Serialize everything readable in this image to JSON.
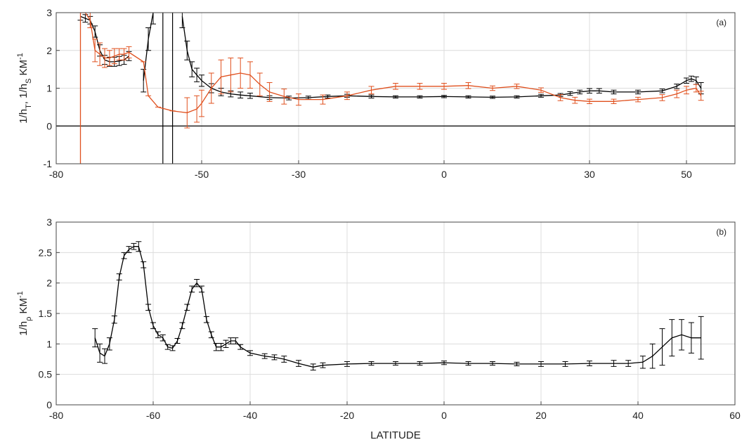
{
  "chart_data": [
    {
      "type": "line",
      "annotation": "(a)",
      "ylabel": [
        {
          "text": "1/h"
        },
        {
          "text": "T",
          "shift": "sub"
        },
        {
          "text": ", 1/h"
        },
        {
          "text": "S",
          "shift": "sub"
        },
        {
          "text": " KM"
        },
        {
          "text": "-1",
          "shift": "super"
        }
      ],
      "xlim": [
        -80,
        60
      ],
      "ylim": [
        -1,
        3
      ],
      "xticks": [
        -80,
        -50,
        -30,
        0,
        30,
        50
      ],
      "yticks": [
        -1,
        0,
        1,
        2,
        3
      ],
      "grid": true,
      "zeroline": true,
      "vlines": [
        -58,
        -56
      ],
      "vline_color": "#000000",
      "series": [
        {
          "name": "1/hT",
          "color": "#000000",
          "x": [
            -75,
            -74,
            -73,
            -72,
            -71,
            -70,
            -69,
            -68,
            -67,
            -66,
            -65,
            -63,
            -62,
            -61,
            -60,
            -58,
            -54,
            -53,
            -52,
            -51,
            -50,
            -48,
            -46,
            -44,
            -42,
            -40,
            -36,
            -32,
            -28,
            -24,
            -20,
            -15,
            -10,
            -5,
            0,
            5,
            10,
            15,
            20,
            24,
            26,
            28,
            30,
            32,
            35,
            40,
            45,
            48,
            50,
            51,
            52,
            53
          ],
          "values": [
            2.9,
            2.85,
            2.8,
            2.5,
            2.0,
            1.75,
            1.7,
            1.7,
            1.72,
            1.75,
            1.85,
            null,
            1.2,
            2.3,
            3.0,
            null,
            2.9,
            2.0,
            1.5,
            1.35,
            1.2,
            1.0,
            0.9,
            0.85,
            0.82,
            0.8,
            0.75,
            0.74,
            0.75,
            0.78,
            0.8,
            0.78,
            0.77,
            0.77,
            0.78,
            0.77,
            0.76,
            0.77,
            0.8,
            0.82,
            0.86,
            0.9,
            0.93,
            0.93,
            0.9,
            0.9,
            0.93,
            1.05,
            1.2,
            1.25,
            1.2,
            1.0
          ],
          "errors": [
            0.1,
            0.1,
            0.1,
            0.15,
            0.15,
            0.12,
            0.12,
            0.12,
            0.12,
            0.12,
            0.12,
            null,
            0.3,
            0.3,
            0.3,
            null,
            0.3,
            0.25,
            0.2,
            0.18,
            0.15,
            0.12,
            0.1,
            0.08,
            0.08,
            0.07,
            0.05,
            0.05,
            0.04,
            0.04,
            0.04,
            0.04,
            0.03,
            0.03,
            0.03,
            0.03,
            0.03,
            0.03,
            0.04,
            0.04,
            0.05,
            0.05,
            0.06,
            0.06,
            0.05,
            0.05,
            0.05,
            0.06,
            0.07,
            0.07,
            0.1,
            0.15
          ]
        },
        {
          "name": "1/hS",
          "color": "#e0501e",
          "x": [
            -75,
            -75,
            -74,
            -73,
            -72,
            -71,
            -70,
            -69,
            -68,
            -67,
            -66,
            -65,
            -62,
            -61,
            -59,
            -56,
            -53,
            -51,
            -50,
            -48,
            -46,
            -44,
            -42,
            -40,
            -38,
            -36,
            -33,
            -30,
            -25,
            -20,
            -15,
            -10,
            -5,
            0,
            5,
            10,
            15,
            20,
            24,
            27,
            30,
            35,
            40,
            45,
            48,
            50,
            52,
            53
          ],
          "values": [
            -1,
            3,
            3.0,
            2.8,
            2.0,
            1.9,
            1.8,
            1.8,
            1.85,
            1.9,
            1.9,
            1.95,
            1.7,
            0.8,
            0.5,
            0.4,
            0.35,
            0.45,
            0.6,
            1.0,
            1.3,
            1.35,
            1.4,
            1.35,
            1.1,
            0.9,
            0.78,
            0.7,
            0.7,
            0.8,
            0.95,
            1.05,
            1.05,
            1.05,
            1.07,
            1.0,
            1.05,
            0.95,
            0.75,
            0.68,
            0.65,
            0.65,
            0.7,
            0.75,
            0.85,
            0.95,
            1.0,
            0.8
          ],
          "errors": [
            0,
            0,
            0,
            0.2,
            0.3,
            0.3,
            0.25,
            0.2,
            0.2,
            0.15,
            0.15,
            0.15,
            0,
            0,
            0,
            0,
            0.4,
            0.35,
            0.35,
            0.4,
            0.45,
            0.45,
            0.4,
            0.35,
            0.3,
            0.25,
            0.2,
            0.15,
            0.12,
            0.1,
            0.1,
            0.08,
            0.08,
            0.08,
            0.08,
            0.06,
            0.06,
            0.06,
            0.08,
            0.08,
            0.06,
            0.06,
            0.06,
            0.08,
            0.1,
            0.1,
            0.1,
            0.12
          ]
        }
      ]
    },
    {
      "type": "line",
      "annotation": "(b)",
      "ylabel": [
        {
          "text": "1/h"
        },
        {
          "text": "ρ",
          "shift": "sub"
        },
        {
          "text": " KM"
        },
        {
          "text": "-1",
          "shift": "super"
        }
      ],
      "xlabel": "LATITUDE",
      "xlim": [
        -80,
        60
      ],
      "ylim": [
        0,
        3
      ],
      "xticks": [
        -80,
        -60,
        -40,
        -20,
        0,
        20,
        40,
        60
      ],
      "yticks": [
        0,
        0.5,
        1,
        1.5,
        2,
        2.5,
        3
      ],
      "grid": true,
      "series": [
        {
          "name": "1/hρ",
          "color": "#000000",
          "x": [
            -72,
            -71,
            -70,
            -69,
            -68,
            -67,
            -66,
            -65,
            -64,
            -63,
            -62,
            -61,
            -60,
            -59,
            -58,
            -57,
            -56,
            -55,
            -54,
            -53,
            -52,
            -51,
            -50,
            -49,
            -48,
            -47,
            -46,
            -45,
            -44,
            -43,
            -42,
            -40,
            -37,
            -35,
            -33,
            -30,
            -27,
            -25,
            -20,
            -15,
            -10,
            -5,
            0,
            5,
            10,
            15,
            20,
            25,
            30,
            35,
            38,
            41,
            43,
            45,
            47,
            49,
            51,
            53
          ],
          "values": [
            1.1,
            0.85,
            0.8,
            1.0,
            1.4,
            2.1,
            2.45,
            2.55,
            2.6,
            2.6,
            2.3,
            1.6,
            1.3,
            1.15,
            1.1,
            0.95,
            0.93,
            1.05,
            1.3,
            1.6,
            1.9,
            2.0,
            1.9,
            1.4,
            1.15,
            0.95,
            0.95,
            1.0,
            1.05,
            1.05,
            0.95,
            0.85,
            0.8,
            0.78,
            0.75,
            0.68,
            0.62,
            0.65,
            0.67,
            0.68,
            0.68,
            0.68,
            0.69,
            0.68,
            0.68,
            0.67,
            0.67,
            0.67,
            0.68,
            0.68,
            0.68,
            0.7,
            0.8,
            0.95,
            1.1,
            1.15,
            1.1,
            1.1
          ],
          "errors": [
            0.15,
            0.15,
            0.12,
            0.1,
            0.06,
            0.05,
            0.05,
            0.05,
            0.05,
            0.08,
            0.05,
            0.05,
            0.05,
            0.05,
            0.05,
            0.04,
            0.04,
            0.04,
            0.05,
            0.05,
            0.05,
            0.06,
            0.05,
            0.05,
            0.05,
            0.06,
            0.06,
            0.06,
            0.05,
            0.05,
            0.04,
            0.04,
            0.04,
            0.04,
            0.05,
            0.05,
            0.05,
            0.04,
            0.04,
            0.03,
            0.03,
            0.03,
            0.03,
            0.03,
            0.03,
            0.03,
            0.04,
            0.04,
            0.04,
            0.05,
            0.05,
            0.1,
            0.2,
            0.3,
            0.3,
            0.25,
            0.25,
            0.35
          ]
        }
      ]
    }
  ]
}
